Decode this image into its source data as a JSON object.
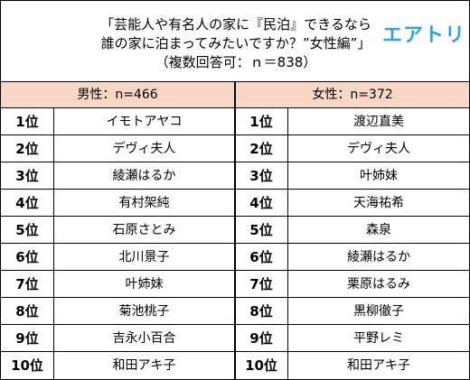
{
  "title": {
    "line1": "「芸能人や有名人の家に『民泊』できるなら",
    "line2": "誰の家に泊まってみたいですか？”女性編”」",
    "line3": "（複数回答可：ｎ＝838）"
  },
  "logo": {
    "text": "エアトリ",
    "color": "#2fa5dc"
  },
  "colors": {
    "header_bg": "#f9d6c5",
    "border": "#000000"
  },
  "columns": {
    "male": {
      "header": "男性：n=466",
      "rows": [
        {
          "rank": "1位",
          "name": "イモトアヤコ"
        },
        {
          "rank": "2位",
          "name": "デヴィ夫人"
        },
        {
          "rank": "3位",
          "name": "綾瀬はるか"
        },
        {
          "rank": "4位",
          "name": "有村架純"
        },
        {
          "rank": "5位",
          "name": "石原さとみ"
        },
        {
          "rank": "6位",
          "name": "北川景子"
        },
        {
          "rank": "7位",
          "name": "叶姉妹"
        },
        {
          "rank": "8位",
          "name": "菊池桃子"
        },
        {
          "rank": "9位",
          "name": "吉永小百合"
        },
        {
          "rank": "10位",
          "name": "和田アキ子"
        }
      ]
    },
    "female": {
      "header": "女性：n=372",
      "rows": [
        {
          "rank": "1位",
          "name": "渡辺直美"
        },
        {
          "rank": "2位",
          "name": "デヴィ夫人"
        },
        {
          "rank": "3位",
          "name": "叶姉妹"
        },
        {
          "rank": "4位",
          "name": "天海祐希"
        },
        {
          "rank": "5位",
          "name": "森泉"
        },
        {
          "rank": "6位",
          "name": "綾瀬はるか"
        },
        {
          "rank": "7位",
          "name": "栗原はるみ"
        },
        {
          "rank": "8位",
          "name": "黒柳徹子"
        },
        {
          "rank": "9位",
          "name": "平野レミ"
        },
        {
          "rank": "10位",
          "name": "和田アキ子"
        }
      ]
    }
  }
}
